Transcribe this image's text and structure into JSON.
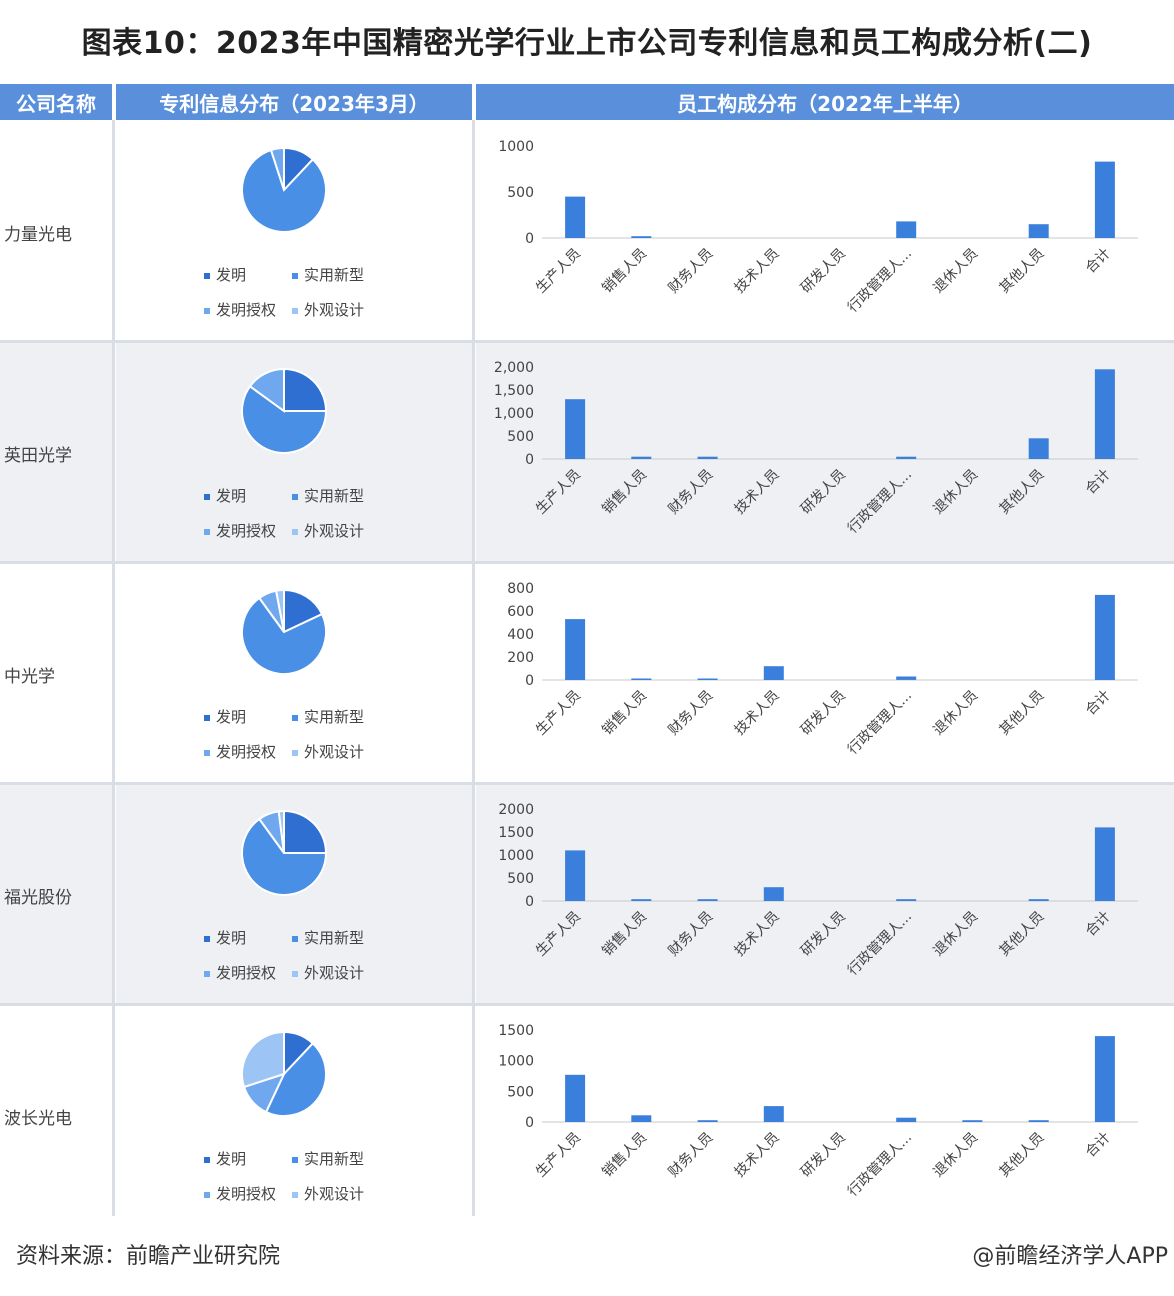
{
  "title": "图表10：2023年中国精密光学行业上市公司专利信息和员工构成分析(二)",
  "header": {
    "col1": "公司名称",
    "col2": "专利信息分布（2023年3月）",
    "col3": "员工构成分布（2022年上半年）"
  },
  "legend": [
    "发明",
    "实用新型",
    "发明授权",
    "外观设计"
  ],
  "colors": {
    "header_bg": "#5a8fdc",
    "bar": "#3a7fdc",
    "pie": [
      "#2f6fd1",
      "#4a8fe6",
      "#6fa8ee",
      "#9cc4f4"
    ],
    "row_alt_bg": "#eef0f4"
  },
  "companies": [
    {
      "name": "力量光电"
    },
    {
      "name": "英田光学"
    },
    {
      "name": "中光学"
    },
    {
      "name": "福光股份"
    },
    {
      "name": "波长光电"
    }
  ],
  "chart_data": [
    {
      "type": "pie",
      "company": "力量光电",
      "categories": [
        "发明",
        "实用新型",
        "发明授权",
        "外观设计"
      ],
      "values": [
        12,
        83,
        5,
        0
      ]
    },
    {
      "type": "bar",
      "company": "力量光电",
      "categories": [
        "生产人员",
        "销售人员",
        "财务人员",
        "技术人员",
        "研发人员",
        "行政管理人...",
        "退休人员",
        "其他人员",
        "合计"
      ],
      "values": [
        450,
        20,
        0,
        0,
        0,
        180,
        0,
        150,
        830
      ],
      "ylim": [
        0,
        1000
      ],
      "yticks": [
        "1000",
        "500",
        "0"
      ]
    },
    {
      "type": "pie",
      "company": "英田光学",
      "categories": [
        "发明",
        "实用新型",
        "发明授权",
        "外观设计"
      ],
      "values": [
        25,
        60,
        15,
        0
      ]
    },
    {
      "type": "bar",
      "company": "英田光学",
      "categories": [
        "生产人员",
        "销售人员",
        "财务人员",
        "技术人员",
        "研发人员",
        "行政管理人...",
        "退休人员",
        "其他人员",
        "合计"
      ],
      "values": [
        1300,
        50,
        50,
        0,
        0,
        50,
        0,
        450,
        1950
      ],
      "ylim": [
        0,
        2000
      ],
      "yticks": [
        "2,000",
        "1,500",
        "1,000",
        "500",
        "0"
      ]
    },
    {
      "type": "pie",
      "company": "中光学",
      "categories": [
        "发明",
        "实用新型",
        "发明授权",
        "外观设计"
      ],
      "values": [
        18,
        72,
        7,
        3
      ]
    },
    {
      "type": "bar",
      "company": "中光学",
      "categories": [
        "生产人员",
        "销售人员",
        "财务人员",
        "技术人员",
        "研发人员",
        "行政管理人...",
        "退休人员",
        "其他人员",
        "合计"
      ],
      "values": [
        530,
        10,
        10,
        120,
        0,
        30,
        0,
        0,
        740
      ],
      "ylim": [
        0,
        800
      ],
      "yticks": [
        "800",
        "600",
        "400",
        "200",
        "0"
      ]
    },
    {
      "type": "pie",
      "company": "福光股份",
      "categories": [
        "发明",
        "实用新型",
        "发明授权",
        "外观设计"
      ],
      "values": [
        25,
        65,
        8,
        2
      ]
    },
    {
      "type": "bar",
      "company": "福光股份",
      "categories": [
        "生产人员",
        "销售人员",
        "财务人员",
        "技术人员",
        "研发人员",
        "行政管理人...",
        "退休人员",
        "其他人员",
        "合计"
      ],
      "values": [
        1100,
        40,
        40,
        300,
        0,
        40,
        0,
        40,
        1600
      ],
      "ylim": [
        0,
        2000
      ],
      "yticks": [
        "2000",
        "1500",
        "1000",
        "500",
        "0"
      ]
    },
    {
      "type": "pie",
      "company": "波长光电",
      "categories": [
        "发明",
        "实用新型",
        "发明授权",
        "外观设计"
      ],
      "values": [
        12,
        45,
        13,
        30
      ]
    },
    {
      "type": "bar",
      "company": "波长光电",
      "categories": [
        "生产人员",
        "销售人员",
        "财务人员",
        "技术人员",
        "研发人员",
        "行政管理人...",
        "退休人员",
        "其他人员",
        "合计"
      ],
      "values": [
        770,
        110,
        30,
        260,
        0,
        70,
        30,
        30,
        1400
      ],
      "ylim": [
        0,
        1500
      ],
      "yticks": [
        "1500",
        "1000",
        "500",
        "0"
      ]
    }
  ],
  "footer": {
    "source": "资料来源：前瞻产业研究院",
    "brand": "@前瞻经济学人APP"
  }
}
